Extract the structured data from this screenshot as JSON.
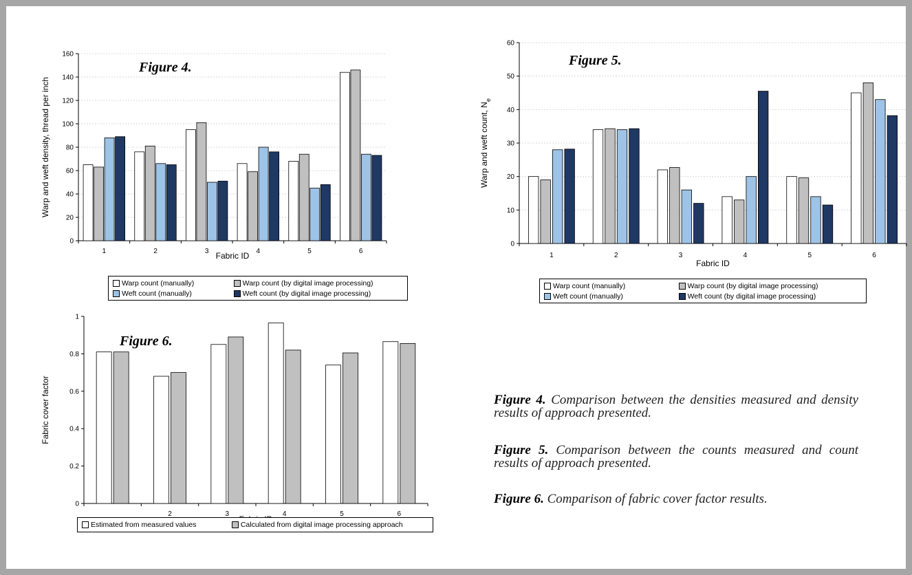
{
  "chart_data": [
    {
      "type": "bar",
      "title": "Figure 4.",
      "xlabel": "Fabric ID",
      "ylabel": "Warp and weft density, thread per inch",
      "categories": [
        "1",
        "2",
        "3",
        "4",
        "5",
        "6"
      ],
      "ylim": [
        0,
        160
      ],
      "yticks": [
        "0",
        "20",
        "40",
        "60",
        "80",
        "100",
        "120",
        "140",
        "160"
      ],
      "grid": true,
      "legend_position": "bottom",
      "series": [
        {
          "name": "Warp count (manually)",
          "color": "#ffffff",
          "values": [
            65,
            76,
            95,
            66,
            68,
            144
          ]
        },
        {
          "name": "Warp count  (by digital image processing)",
          "color": "#c0c0c0",
          "values": [
            63,
            81,
            101,
            59,
            74,
            146
          ]
        },
        {
          "name": "Weft count (manually)",
          "color": "#9dc3e6",
          "values": [
            88,
            66,
            50,
            80,
            45,
            74
          ]
        },
        {
          "name": "Weft count  (by digital image processing)",
          "color": "#1f3864",
          "values": [
            89,
            65,
            51,
            76,
            48,
            73
          ]
        }
      ]
    },
    {
      "type": "bar",
      "title": "Figure 5.",
      "xlabel": "Fabric ID",
      "ylabel": "Warp and weft count, Ne",
      "categories": [
        "1",
        "2",
        "3",
        "4",
        "5",
        "6"
      ],
      "ylim": [
        0,
        60
      ],
      "yticks": [
        "0",
        "10",
        "20",
        "30",
        "40",
        "50",
        "60"
      ],
      "grid": true,
      "legend_position": "bottom",
      "series": [
        {
          "name": "Warp count (manually)",
          "color": "#ffffff",
          "values": [
            20,
            34,
            22,
            14,
            20,
            45
          ]
        },
        {
          "name": "Warp count  (by digital image processing)",
          "color": "#c0c0c0",
          "values": [
            19,
            34.3,
            22.7,
            13,
            19.6,
            48
          ]
        },
        {
          "name": "Weft count (manually)",
          "color": "#9dc3e6",
          "values": [
            28,
            34,
            16,
            20,
            14,
            43
          ]
        },
        {
          "name": "Weft count  (by digital image processing)",
          "color": "#1f3864",
          "values": [
            28.2,
            34.3,
            12,
            45.5,
            11.5,
            38.2
          ]
        }
      ]
    },
    {
      "type": "bar",
      "title": "Figure 6.",
      "xlabel": "Fabric ID",
      "ylabel": "Fabric cover factor",
      "categories": [
        "",
        "2",
        "3",
        "4",
        "5",
        "6"
      ],
      "ylim": [
        0,
        1
      ],
      "yticks": [
        "0",
        "0.2",
        "0.4",
        "0.6",
        "0.8",
        "1"
      ],
      "grid": false,
      "legend_position": "bottom",
      "series": [
        {
          "name": "Estimated from measured values",
          "color": "#ffffff",
          "values": [
            0.81,
            0.68,
            0.85,
            0.965,
            0.74,
            0.865
          ]
        },
        {
          "name": "Calculated from digital image processing approach",
          "color": "#c0c0c0",
          "values": [
            0.81,
            0.7,
            0.89,
            0.82,
            0.805,
            0.855
          ]
        }
      ]
    }
  ],
  "captions": [
    {
      "label": "Figure 4.",
      "text": " Comparison between the densities measured and density results of approach presented."
    },
    {
      "label": "Figure 5.",
      "text": " Comparison between the counts measured and count results of approach presented."
    },
    {
      "label": "Figure 6.",
      "text": " Comparison of fabric cover factor results."
    }
  ]
}
